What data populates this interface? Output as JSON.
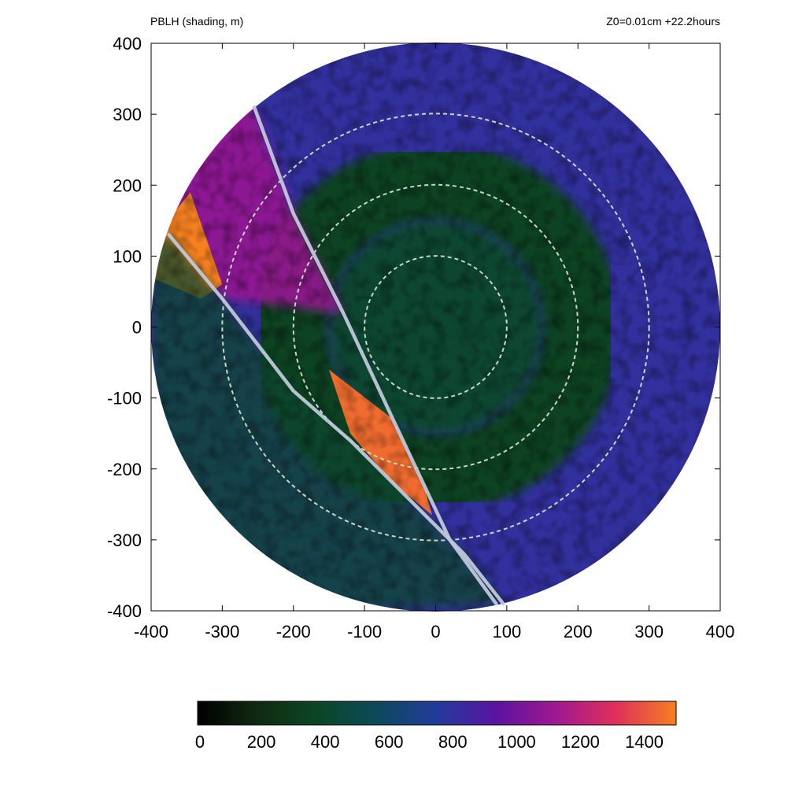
{
  "chart_data": {
    "type": "heatmap",
    "title": "PBLH (shading, m)",
    "annotation": "Z0=0.01cm  +22.2hours",
    "xlim": [
      -400,
      400
    ],
    "ylim": [
      -400,
      400
    ],
    "x_ticks": [
      "-400",
      "-300",
      "-200",
      "-100",
      "0",
      "100",
      "200",
      "300",
      "400"
    ],
    "y_ticks": [
      "400",
      "300",
      "200",
      "100",
      "0",
      "-100",
      "-200",
      "-300",
      "-400"
    ],
    "domain_radius": 400,
    "range_rings": [
      100,
      200,
      300
    ],
    "colorbar": {
      "min": 0,
      "max": 1500,
      "ticks": [
        "0",
        "200",
        "400",
        "600",
        "800",
        "1000",
        "1200",
        "1400"
      ],
      "colors": [
        "#000000",
        "#0f2a10",
        "#0c4626",
        "#0c4a5a",
        "#233a9c",
        "#5a14a0",
        "#a01890",
        "#e0305a",
        "#f58020"
      ]
    },
    "fields": [
      {
        "region": "eyewall ring",
        "r_inner": 150,
        "r_outer": 260,
        "value": 350
      },
      {
        "region": "inner core",
        "r_inner": 0,
        "r_outer": 150,
        "value": 420
      },
      {
        "region": "outer domain",
        "r_inner": 260,
        "r_outer": 400,
        "value": 800
      },
      {
        "region": "northwest sector",
        "value": 1100
      },
      {
        "region": "northwest edge",
        "value": 1500
      },
      {
        "region": "southwest sector",
        "value": 400
      },
      {
        "region": "frontal strip",
        "value": 1450
      }
    ],
    "boundary_lines": [
      {
        "points": [
          [
            -255,
            310
          ],
          [
            -200,
            160
          ],
          [
            -130,
            20
          ],
          [
            -60,
            -130
          ],
          [
            20,
            -300
          ],
          [
            85,
            -390
          ]
        ]
      },
      {
        "points": [
          [
            -375,
            130
          ],
          [
            -300,
            40
          ],
          [
            -200,
            -90
          ],
          [
            -120,
            -160
          ],
          [
            -40,
            -240
          ],
          [
            40,
            -320
          ],
          [
            95,
            -390
          ]
        ]
      }
    ]
  }
}
